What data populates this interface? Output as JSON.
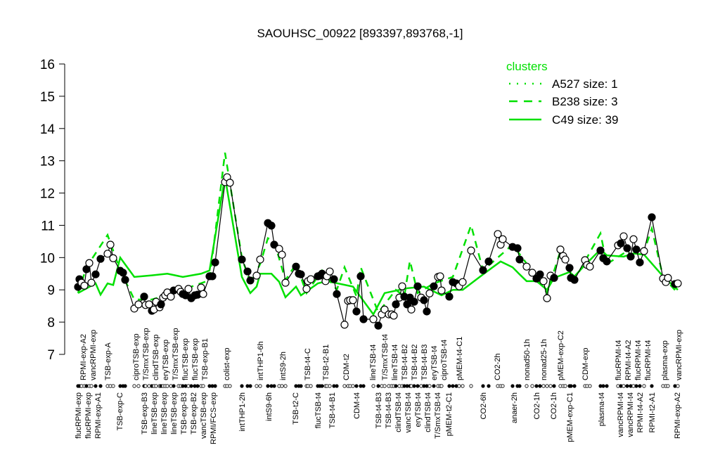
{
  "chart_data": {
    "type": "line",
    "title": "SAOUHSC_00922 [893397,893768,-1]",
    "xlabel": "",
    "ylabel": "",
    "ylim": [
      7,
      16
    ],
    "yticks": [
      7,
      8,
      9,
      10,
      11,
      12,
      13,
      14,
      15,
      16
    ],
    "grid": false,
    "legend": {
      "title": "clusters",
      "placement": "top-right",
      "entries": [
        {
          "label": "A527 size: 1",
          "style": "dotted"
        },
        {
          "label": "B238 size: 3",
          "style": "dashed"
        },
        {
          "label": "C49 size: 39",
          "style": "solid"
        }
      ]
    },
    "colors": {
      "cluster": "#00e000",
      "points": "#000000"
    },
    "points": {
      "values": [
        9.09,
        9.33,
        9.22,
        9.13,
        9.64,
        9.83,
        9.22,
        9.48,
        9.96,
        10.12,
        10.4,
        9.98,
        9.59,
        9.53,
        9.31,
        8.42,
        8.55,
        8.79,
        8.53,
        8.55,
        8.35,
        8.39,
        8.63,
        8.46,
        8.55,
        8.76,
        8.83,
        8.92,
        8.79,
        8.98,
        9.03,
        8.94,
        8.87,
        8.83,
        9.03,
        8.74,
        8.83,
        8.85,
        9.07,
        8.87,
        9.42,
        9.42,
        9.85,
        12.34,
        12.49,
        12.32,
        9.94,
        9.57,
        9.29,
        9.44,
        9.94,
        11.07,
        10.99,
        10.4,
        10.27,
        10.09,
        9.22,
        9.72,
        9.5,
        9.48,
        9.03,
        9.27,
        9.33,
        9.42,
        9.44,
        9.5,
        9.27,
        9.42,
        9.57,
        9.33,
        8.87,
        7.92,
        8.66,
        8.68,
        8.68,
        8.33,
        9.42,
        8.09,
        8.09,
        7.89,
        8.24,
        8.39,
        8.24,
        8.24,
        8.2,
        8.55,
        8.76,
        9.11,
        8.79,
        8.55,
        8.76,
        8.39,
        8.63,
        9.11,
        8.76,
        8.68,
        8.33,
        8.89,
        9.11,
        9.4,
        9.42,
        8.98,
        8.79,
        9.24,
        9.2,
        9.11,
        9.24,
        10.22,
        9.61,
        9.88,
        10.73,
        10.4,
        10.57,
        10.33,
        10.29,
        9.94,
        9.72,
        9.53,
        9.35,
        9.48,
        9.27,
        8.74,
        9.44,
        9.37,
        10.25,
        10.05,
        9.94,
        9.68,
        9.37,
        9.31,
        9.92,
        9.77,
        9.72,
        10.22,
        9.98,
        9.88,
        10.38,
        10.44,
        10.66,
        10.29,
        10.03,
        10.57,
        10.25,
        9.85,
        10.2,
        11.25,
        9.35,
        9.24,
        9.37,
        9.18,
        9.2
      ],
      "filled": [
        1,
        1,
        0,
        0,
        1,
        0,
        0,
        1,
        1,
        0,
        0,
        0,
        1,
        1,
        1,
        0,
        0,
        1,
        0,
        0,
        1,
        0,
        0,
        0,
        1,
        0,
        0,
        0,
        0,
        1,
        0,
        0,
        1,
        1,
        0,
        1,
        1,
        1,
        0,
        0,
        1,
        1,
        1,
        0,
        0,
        0,
        1,
        1,
        1,
        0,
        0,
        1,
        1,
        1,
        0,
        0,
        0,
        1,
        1,
        1,
        0,
        0,
        0,
        1,
        1,
        1,
        0,
        0,
        0,
        1,
        1,
        0,
        0,
        0,
        0,
        1,
        1,
        1,
        0,
        1,
        0,
        0,
        0,
        0,
        0,
        1,
        0,
        0,
        1,
        1,
        1,
        0,
        1,
        1,
        0,
        1,
        1,
        0,
        1,
        0,
        0,
        0,
        1,
        1,
        1,
        0,
        0,
        0,
        1,
        1,
        0,
        0,
        0,
        1,
        1,
        1,
        0,
        0,
        1,
        1,
        0,
        0,
        0,
        1,
        0,
        0,
        0,
        1,
        1,
        1,
        0,
        0,
        0,
        1,
        1,
        1,
        0,
        1,
        0,
        1,
        1,
        0,
        1,
        1,
        0,
        1,
        0,
        0,
        0,
        1,
        0
      ]
    },
    "series": [
      {
        "name": "B238 size: 3",
        "style": "dashed",
        "points": [
          [
            0,
            8.9
          ],
          [
            4,
            9.7
          ],
          [
            9,
            10.7
          ],
          [
            12,
            9.6
          ],
          [
            15,
            8.7
          ],
          [
            20,
            8.7
          ],
          [
            29,
            8.9
          ],
          [
            40,
            9.3
          ],
          [
            43,
            13.25
          ],
          [
            46,
            10.0
          ],
          [
            48,
            9.2
          ],
          [
            50,
            9.8
          ],
          [
            51,
            10.6
          ],
          [
            53,
            10.5
          ],
          [
            56,
            9.3
          ],
          [
            57,
            9.8
          ],
          [
            60,
            8.9
          ],
          [
            65,
            9.6
          ],
          [
            70,
            9.0
          ],
          [
            71,
            9.7
          ],
          [
            75,
            8.8
          ],
          [
            76,
            9.7
          ],
          [
            79,
            8.3
          ],
          [
            85,
            9.0
          ],
          [
            88,
            8.8
          ],
          [
            90,
            9.9
          ],
          [
            93,
            8.9
          ],
          [
            98,
            9.2
          ],
          [
            103,
            9.4
          ],
          [
            107,
            11.0
          ],
          [
            108,
            9.6
          ],
          [
            110,
            10.0
          ],
          [
            113,
            10.4
          ],
          [
            118,
            9.4
          ],
          [
            121,
            8.9
          ],
          [
            124,
            10.2
          ],
          [
            129,
            9.3
          ],
          [
            133,
            10.75
          ],
          [
            135,
            9.8
          ],
          [
            139,
            10.2
          ],
          [
            143,
            9.8
          ],
          [
            145,
            10.9
          ],
          [
            146,
            9.4
          ],
          [
            150,
            8.9
          ]
        ]
      },
      {
        "name": "C49 size: 39",
        "style": "solid",
        "points": [
          [
            0,
            8.9
          ],
          [
            7,
            9.2
          ],
          [
            8,
            8.85
          ],
          [
            9,
            9.2
          ],
          [
            11,
            9.15
          ],
          [
            12,
            10.0
          ],
          [
            15,
            9.4
          ],
          [
            20,
            9.45
          ],
          [
            27,
            9.5
          ],
          [
            32,
            9.4
          ],
          [
            38,
            9.5
          ],
          [
            40,
            9.6
          ],
          [
            43,
            12.5
          ],
          [
            46,
            9.4
          ],
          [
            48,
            8.9
          ],
          [
            49,
            9.1
          ],
          [
            50,
            9.5
          ],
          [
            52,
            9.5
          ],
          [
            54,
            9.25
          ],
          [
            56,
            8.77
          ],
          [
            57,
            9.1
          ],
          [
            59,
            8.83
          ],
          [
            63,
            9.2
          ],
          [
            67,
            9.27
          ],
          [
            74,
            9.1
          ],
          [
            78,
            8.24
          ],
          [
            81,
            8.9
          ],
          [
            89,
            9.05
          ],
          [
            95,
            9.1
          ],
          [
            101,
            8.83
          ],
          [
            103,
            9.0
          ],
          [
            106,
            9.0
          ],
          [
            108,
            9.48
          ],
          [
            111,
            9.88
          ],
          [
            113,
            9.7
          ],
          [
            115,
            9.48
          ],
          [
            116,
            9.27
          ],
          [
            118,
            9.27
          ],
          [
            121,
            9.0
          ],
          [
            123,
            9.37
          ],
          [
            127,
            9.55
          ],
          [
            129,
            9.42
          ],
          [
            130,
            9.77
          ],
          [
            133,
            10.25
          ],
          [
            135,
            10.07
          ],
          [
            138,
            10.03
          ],
          [
            141,
            10.13
          ],
          [
            144,
            10.09
          ],
          [
            146,
            9.42
          ],
          [
            150,
            9.0
          ]
        ]
      }
    ],
    "xlabels_top": [
      "RPMI-exp-A2",
      "vancRPMI-exp",
      "TSB-exp-A",
      "ciproTSB-exp",
      "T/SmxTSB-exp",
      "clindTSB-exp",
      "eryTSB-exp",
      "T/SmxTSB-exp",
      "flucTSB-exp",
      "flucTSB-exp",
      "TSB-exp-B1",
      "colist-exp",
      "intTHP1-6h",
      "intS9-2h",
      "TSB-t4-C",
      "TSB-t2-B1",
      "CDM-t2",
      "lineTSB-t4",
      "T/SmxTSB-t4",
      "lineTSB-t4",
      "TSB-t4-B2",
      "TSB-t4-B2",
      "TSB-t4-B3",
      "eryTSB-t4",
      "ciproTSB-t4",
      "pMEM-t4-C1",
      "CO2-2h",
      "nonad50-1h",
      "nonad25-1h",
      "pMEM-exp-C2",
      "CDM-exp",
      "flucRPMI-t4",
      "RPMI-t4-A2",
      "flucRPMI-t4",
      "flucRPMI-t4",
      "plasma-exp",
      "vancRPMI-exp"
    ],
    "xlabels_bottom": [
      "flucRPMI-exp",
      "flucRPMI-exp",
      "RPMI-exp-A1",
      "TSB-exp-C",
      "TSB-exp-B3",
      "lineTSB-exp",
      "lineTSB-exp",
      "lineTSB-exp",
      "TSB-exp-B3",
      "TSB-exp-B2",
      "vancTSB-exp",
      "RPMI/FCS-exp",
      "intTHP1-2h",
      "intS9-6h",
      "TSB-t2-C",
      "flucTSB-t4",
      "TSB-t4-B1",
      "CDM-t4",
      "TSB-t4-B3",
      "TSB-t4-B3",
      "clindTSB-t4",
      "vancTSB-t4",
      "eryTSB-t4",
      "clindTSB-t4",
      "T/SmxTSB-t4",
      "pMEM-t2-C1",
      "CO2-6h",
      "anaer-2h",
      "CO2-1h",
      "CO2-1h",
      "pMEM-exp-C1",
      "plasma-t4",
      "vancRPMI-t4",
      "vancRPMI-t4",
      "RPMI-t4-A2",
      "RPMI-t2-A1",
      "RPMI-exp-A2"
    ]
  }
}
